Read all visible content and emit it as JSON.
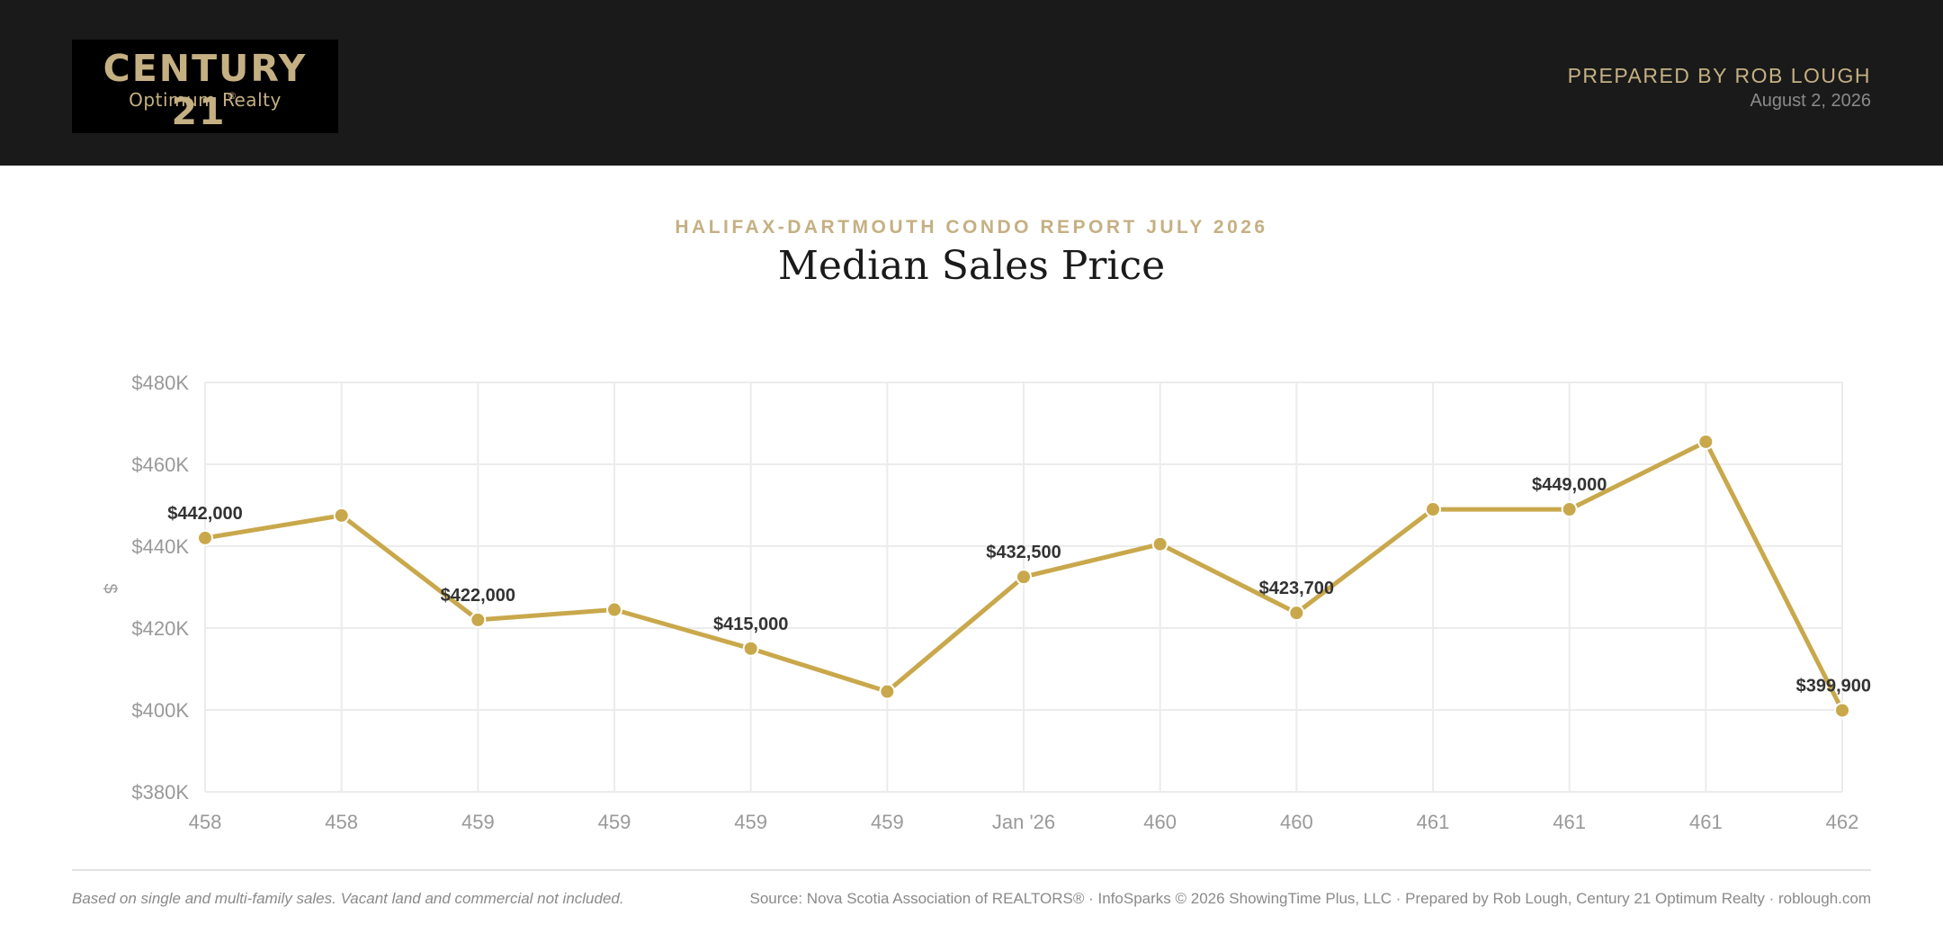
{
  "header": {
    "logo_brand": "CENTURY 21",
    "logo_registered": "®",
    "logo_sub": "Optimum Realty",
    "prepared_by": "PREPARED BY ROB LOUGH",
    "date": "August 2, 2026"
  },
  "report": {
    "eyebrow": "HALIFAX-DARTMOUTH CONDO REPORT JULY 2026",
    "title": "Median Sales Price"
  },
  "chart_data": {
    "type": "line",
    "title": "Median Sales Price",
    "ylabel": "$",
    "xlabel": "",
    "categories": [
      "458",
      "458",
      "459",
      "459",
      "459",
      "459",
      "Jan '26",
      "460",
      "460",
      "461",
      "461",
      "461",
      "462"
    ],
    "values": [
      442000,
      447500,
      422000,
      424500,
      415000,
      404500,
      432500,
      440500,
      423700,
      449000,
      449000,
      465500,
      399900
    ],
    "data_labels": [
      "$442,000",
      "",
      "$422,000",
      "",
      "$415,000",
      "",
      "$432,500",
      "",
      "$423,700",
      "",
      "$449,000",
      "",
      "$399,900"
    ],
    "ylim": [
      380000,
      480000
    ],
    "yticks": [
      480000,
      460000,
      440000,
      420000,
      400000,
      380000
    ],
    "ytick_labels": [
      "$480K",
      "$460K",
      "$440K",
      "$420K",
      "$400K",
      "$380K"
    ],
    "grid": true,
    "legend": "none",
    "line_color": "#c9a84c",
    "grid_color": "#ececec",
    "axis_text_color": "#999999",
    "label_color": "#333333"
  },
  "footer": {
    "note": "Based on single and multi-family sales. Vacant land and commercial not included.",
    "source": "Source: Nova Scotia Association of REALTORS® · InfoSparks © 2026 ShowingTime Plus, LLC · Prepared by Rob Lough, Century 21 Optimum Realty · roblough.com"
  }
}
